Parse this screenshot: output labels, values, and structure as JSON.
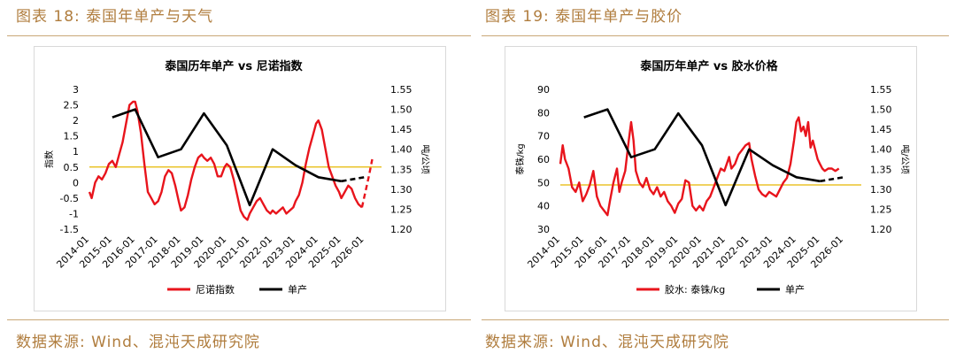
{
  "figures": [
    {
      "title": "图表 18: 泰国年单产与天气",
      "source": "数据来源: Wind、混沌天成研究院",
      "chart_data": {
        "type": "line",
        "title": "泰国历年单产 vs 尼诺指数",
        "xlabel": "",
        "ylabel_left": "指数",
        "ylabel_right": "吨/公顷",
        "x_ticks": [
          "2014-01",
          "2015-01",
          "2016-01",
          "2017-01",
          "2018-01",
          "2019-01",
          "2020-01",
          "2021-01",
          "2022-01",
          "2023-01",
          "2024-01",
          "2025-01",
          "2026-01"
        ],
        "y_left_ticks": [
          "3",
          "2.5",
          "2",
          "1.5",
          "1",
          "0.5",
          "0",
          "-0.5",
          "-1",
          "-1.5"
        ],
        "y_left_range": [
          -1.5,
          3
        ],
        "y_right_ticks": [
          "1.55",
          "1.50",
          "1.45",
          "1.40",
          "1.35",
          "1.30",
          "1.25",
          "1.20"
        ],
        "y_right_range": [
          1.2,
          1.55
        ],
        "reference_line": {
          "axis": "left",
          "value": 0.5,
          "color": "#e6b800"
        },
        "series": [
          {
            "name": "尼诺指数",
            "axis": "left",
            "color": "#e8141c",
            "x": [
              2014.0,
              2014.1,
              2014.25,
              2014.4,
              2014.55,
              2014.7,
              2014.85,
              2015.0,
              2015.15,
              2015.3,
              2015.45,
              2015.6,
              2015.75,
              2015.9,
              2016.0,
              2016.1,
              2016.25,
              2016.4,
              2016.55,
              2016.7,
              2016.85,
              2017.0,
              2017.15,
              2017.3,
              2017.45,
              2017.6,
              2017.75,
              2017.9,
              2018.0,
              2018.15,
              2018.3,
              2018.45,
              2018.6,
              2018.75,
              2018.9,
              2019.0,
              2019.15,
              2019.3,
              2019.45,
              2019.6,
              2019.75,
              2019.9,
              2020.0,
              2020.15,
              2020.3,
              2020.45,
              2020.6,
              2020.75,
              2020.9,
              2021.0,
              2021.15,
              2021.3,
              2021.45,
              2021.6,
              2021.75,
              2021.9,
              2022.0,
              2022.15,
              2022.3,
              2022.45,
              2022.6,
              2022.75,
              2022.9,
              2023.0,
              2023.15,
              2023.3,
              2023.45,
              2023.6,
              2023.75,
              2023.9,
              2024.0,
              2024.15,
              2024.3,
              2024.45,
              2024.6,
              2024.75,
              2024.9,
              2025.0,
              2025.15,
              2025.3,
              2025.45,
              2025.6,
              2025.75,
              2025.9
            ],
            "values": [
              -0.3,
              -0.5,
              0.0,
              0.2,
              0.1,
              0.3,
              0.6,
              0.7,
              0.5,
              0.9,
              1.3,
              1.9,
              2.5,
              2.6,
              2.6,
              2.3,
              1.6,
              0.6,
              -0.3,
              -0.5,
              -0.7,
              -0.6,
              -0.3,
              0.2,
              0.4,
              0.3,
              -0.1,
              -0.6,
              -0.9,
              -0.8,
              -0.4,
              0.1,
              0.5,
              0.8,
              0.9,
              0.8,
              0.7,
              0.8,
              0.6,
              0.2,
              0.2,
              0.5,
              0.6,
              0.5,
              0.1,
              -0.4,
              -0.9,
              -1.1,
              -1.2,
              -1.0,
              -0.8,
              -0.6,
              -0.5,
              -0.7,
              -0.9,
              -1.0,
              -0.9,
              -1.0,
              -0.9,
              -0.8,
              -1.0,
              -0.9,
              -0.8,
              -0.6,
              -0.4,
              0.0,
              0.6,
              1.1,
              1.5,
              1.9,
              2.0,
              1.7,
              1.1,
              0.5,
              0.2,
              -0.1,
              -0.3,
              -0.5,
              -0.3,
              -0.1,
              -0.2,
              -0.5,
              -0.7,
              -0.8
            ]
          },
          {
            "name": "尼诺指数(预测)",
            "axis": "left",
            "color": "#e8141c",
            "dashed": true,
            "legend": false,
            "x": [
              2025.9,
              2026.05,
              2026.2,
              2026.35
            ],
            "values": [
              -0.8,
              -0.3,
              0.2,
              0.75
            ]
          },
          {
            "name": "单产",
            "axis": "right",
            "color": "#000000",
            "x": [
              2015.0,
              2016.0,
              2017.0,
              2018.0,
              2019.0,
              2020.0,
              2021.0,
              2022.0,
              2023.0,
              2024.0,
              2025.0
            ],
            "values": [
              1.48,
              1.5,
              1.38,
              1.4,
              1.49,
              1.41,
              1.26,
              1.4,
              1.36,
              1.33,
              1.32
            ]
          },
          {
            "name": "单产(预测)",
            "axis": "right",
            "color": "#000000",
            "dashed": true,
            "legend": false,
            "x": [
              2025.0,
              2026.0
            ],
            "values": [
              1.32,
              1.33
            ]
          }
        ],
        "legend": [
          "尼诺指数",
          "单产"
        ]
      }
    },
    {
      "title": "图表 19: 泰国年单产与胶价",
      "source": "数据来源: Wind、混沌天成研究院",
      "chart_data": {
        "type": "line",
        "title": "泰国历年单产 vs 胶水价格",
        "xlabel": "",
        "ylabel_left": "泰铢/kg",
        "ylabel_right": "吨/公顷",
        "x_ticks": [
          "2014-01",
          "2015-01",
          "2016-01",
          "2017-01",
          "2018-01",
          "2019-01",
          "2020-01",
          "2021-01",
          "2022-01",
          "2023-01",
          "2024-01",
          "2025-01",
          "2026-01"
        ],
        "y_left_ticks": [
          "90",
          "80",
          "70",
          "60",
          "50",
          "40",
          "30"
        ],
        "y_left_range": [
          30,
          90
        ],
        "y_right_ticks": [
          "1.55",
          "1.50",
          "1.45",
          "1.40",
          "1.35",
          "1.30",
          "1.25",
          "1.20"
        ],
        "y_right_range": [
          1.2,
          1.55
        ],
        "reference_line": {
          "axis": "left",
          "value": 49,
          "color": "#e6b800"
        },
        "series": [
          {
            "name": "胶水: 泰铢/kg",
            "axis": "left",
            "color": "#e8141c",
            "x": [
              2014.0,
              2014.1,
              2014.2,
              2014.35,
              2014.5,
              2014.65,
              2014.8,
              2014.95,
              2015.1,
              2015.25,
              2015.4,
              2015.55,
              2015.7,
              2015.85,
              2016.0,
              2016.1,
              2016.25,
              2016.4,
              2016.5,
              2016.6,
              2016.75,
              2016.9,
              2017.0,
              2017.1,
              2017.2,
              2017.35,
              2017.5,
              2017.65,
              2017.8,
              2017.95,
              2018.1,
              2018.25,
              2018.4,
              2018.55,
              2018.7,
              2018.85,
              2019.0,
              2019.15,
              2019.3,
              2019.45,
              2019.6,
              2019.75,
              2019.9,
              2020.05,
              2020.2,
              2020.35,
              2020.5,
              2020.65,
              2020.8,
              2020.95,
              2021.05,
              2021.15,
              2021.25,
              2021.4,
              2021.55,
              2021.7,
              2021.85,
              2022.0,
              2022.1,
              2022.25,
              2022.4,
              2022.55,
              2022.7,
              2022.85,
              2023.0,
              2023.15,
              2023.3,
              2023.45,
              2023.6,
              2023.75,
              2023.9,
              2024.0,
              2024.1,
              2024.2,
              2024.3,
              2024.4,
              2024.5,
              2024.6,
              2024.7,
              2024.8,
              2024.9,
              2025.0,
              2025.1,
              2025.2,
              2025.35,
              2025.5,
              2025.65,
              2025.8
            ],
            "values": [
              58,
              66,
              60,
              56,
              48,
              46,
              50,
              42,
              45,
              49,
              55,
              44,
              40,
              38,
              36,
              42,
              50,
              56,
              46,
              50,
              55,
              68,
              76,
              68,
              55,
              50,
              48,
              52,
              47,
              45,
              48,
              44,
              46,
              42,
              40,
              37,
              41,
              43,
              51,
              50,
              40,
              38,
              40,
              38,
              42,
              44,
              48,
              52,
              56,
              55,
              58,
              61,
              56,
              58,
              62,
              64,
              66,
              67,
              60,
              53,
              47,
              45,
              44,
              46,
              45,
              44,
              47,
              50,
              52,
              58,
              68,
              76,
              78,
              72,
              74,
              70,
              76,
              65,
              68,
              64,
              60,
              58,
              56,
              55,
              56,
              56,
              55,
              56
            ]
          },
          {
            "name": "单产",
            "axis": "right",
            "color": "#000000",
            "x": [
              2015.0,
              2016.0,
              2017.0,
              2018.0,
              2019.0,
              2020.0,
              2021.0,
              2022.0,
              2023.0,
              2024.0,
              2025.0
            ],
            "values": [
              1.48,
              1.5,
              1.38,
              1.4,
              1.49,
              1.41,
              1.26,
              1.4,
              1.36,
              1.33,
              1.32
            ]
          },
          {
            "name": "单产(预测)",
            "axis": "right",
            "color": "#000000",
            "dashed": true,
            "legend": false,
            "x": [
              2025.0,
              2026.0
            ],
            "values": [
              1.32,
              1.33
            ]
          }
        ],
        "legend": [
          "胶水: 泰铢/kg",
          "单产"
        ]
      }
    }
  ]
}
